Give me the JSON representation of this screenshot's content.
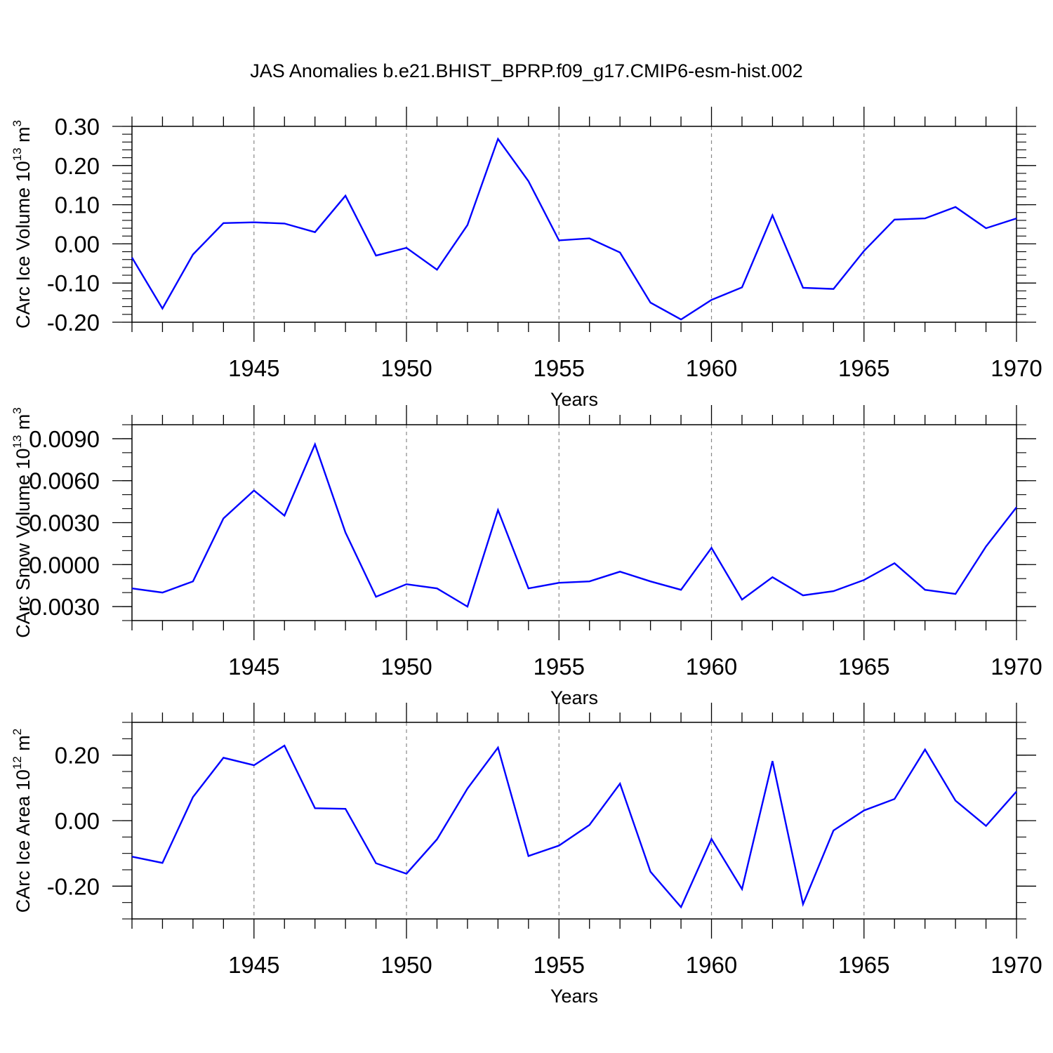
{
  "title": "JAS Anomalies b.e21.BHIST_BPRP.f09_g17.CMIP6-esm-hist.002",
  "line_color": "#0000ff",
  "chart_data": [
    {
      "type": "line",
      "xlabel": "Years",
      "ylabel": {
        "base": "CArc Ice Volume 10",
        "sup": "13",
        "unit": " m",
        "unit_sup": "3"
      },
      "xlim": [
        1941,
        1970
      ],
      "ylim": [
        -0.2,
        0.3
      ],
      "y_ticks": [
        -0.2,
        -0.1,
        0.0,
        0.1,
        0.2,
        0.3
      ],
      "y_tick_labels": [
        "-0.20",
        "-0.10",
        "0.00",
        "0.10",
        "0.20",
        "0.30"
      ],
      "x_ticks": [
        1945,
        1950,
        1955,
        1960,
        1965,
        1970
      ],
      "x_tick_labels": [
        "1945",
        "1950",
        "1955",
        "1960",
        "1965",
        "1970"
      ],
      "grid": "vertical dashed at major x ticks",
      "series": [
        {
          "x": [
            1941,
            1942,
            1943,
            1944,
            1945,
            1946,
            1947,
            1948,
            1949,
            1950,
            1951,
            1952,
            1953,
            1954,
            1955,
            1956,
            1957,
            1958,
            1959,
            1960,
            1961,
            1962,
            1963,
            1964,
            1965,
            1966,
            1967,
            1968,
            1969,
            1970
          ],
          "values": [
            -0.035,
            -0.165,
            -0.027,
            0.053,
            0.055,
            0.052,
            0.03,
            0.123,
            -0.03,
            -0.01,
            -0.066,
            0.048,
            0.268,
            0.16,
            0.009,
            0.014,
            -0.022,
            -0.15,
            -0.193,
            -0.143,
            -0.111,
            0.073,
            -0.112,
            -0.115,
            -0.018,
            0.062,
            0.065,
            0.094,
            0.04,
            0.065
          ]
        }
      ]
    },
    {
      "type": "line",
      "xlabel": "Years",
      "ylabel": {
        "base": "CArc Snow Volume 10",
        "sup": "13",
        "unit": " m",
        "unit_sup": "3"
      },
      "xlim": [
        1941,
        1970
      ],
      "ylim": [
        -0.004,
        0.01
      ],
      "y_ticks": [
        -0.003,
        0.0,
        0.003,
        0.006,
        0.009
      ],
      "y_tick_labels": [
        "-0.0030",
        "0.0000",
        "0.0030",
        "0.0060",
        "0.0090"
      ],
      "x_ticks": [
        1945,
        1950,
        1955,
        1960,
        1965,
        1970
      ],
      "x_tick_labels": [
        "1945",
        "1950",
        "1955",
        "1960",
        "1965",
        "1970"
      ],
      "grid": "vertical dashed at major x ticks",
      "series": [
        {
          "x": [
            1941,
            1942,
            1943,
            1944,
            1945,
            1946,
            1947,
            1948,
            1949,
            1950,
            1951,
            1952,
            1953,
            1954,
            1955,
            1956,
            1957,
            1958,
            1959,
            1960,
            1961,
            1962,
            1963,
            1964,
            1965,
            1966,
            1967,
            1968,
            1969,
            1970
          ],
          "values": [
            -0.0017,
            -0.002,
            -0.0012,
            0.0033,
            0.0053,
            0.0035,
            0.0086,
            0.0023,
            -0.0023,
            -0.0014,
            -0.0017,
            -0.003,
            0.0039,
            -0.0017,
            -0.0013,
            -0.0012,
            -0.0005,
            -0.0012,
            -0.0018,
            0.0012,
            -0.0025,
            -0.0009,
            -0.0022,
            -0.0019,
            -0.0011,
            0.0001,
            -0.0018,
            -0.0021,
            0.0013,
            0.0041
          ]
        }
      ]
    },
    {
      "type": "line",
      "xlabel": "Years",
      "ylabel": {
        "base": "CArc Ice Area 10",
        "sup": "12",
        "unit": " m",
        "unit_sup": "2"
      },
      "xlim": [
        1941,
        1970
      ],
      "ylim": [
        -0.3,
        0.3
      ],
      "y_ticks": [
        -0.2,
        0.0,
        0.2
      ],
      "y_tick_labels": [
        "-0.20",
        "0.00",
        "0.20"
      ],
      "x_ticks": [
        1945,
        1950,
        1955,
        1960,
        1965,
        1970
      ],
      "x_tick_labels": [
        "1945",
        "1950",
        "1955",
        "1960",
        "1965",
        "1970"
      ],
      "grid": "vertical dashed at major x ticks",
      "series": [
        {
          "x": [
            1941,
            1942,
            1943,
            1944,
            1945,
            1946,
            1947,
            1948,
            1949,
            1950,
            1951,
            1952,
            1953,
            1954,
            1955,
            1956,
            1957,
            1958,
            1959,
            1960,
            1961,
            1962,
            1963,
            1964,
            1965,
            1966,
            1967,
            1968,
            1969,
            1970
          ],
          "values": [
            -0.11,
            -0.129,
            0.072,
            0.192,
            0.169,
            0.229,
            0.038,
            0.036,
            -0.13,
            -0.162,
            -0.057,
            0.098,
            0.223,
            -0.108,
            -0.076,
            -0.013,
            0.113,
            -0.156,
            -0.264,
            -0.056,
            -0.209,
            0.182,
            -0.255,
            -0.03,
            0.031,
            0.066,
            0.217,
            0.061,
            -0.016,
            0.089
          ]
        }
      ]
    }
  ]
}
